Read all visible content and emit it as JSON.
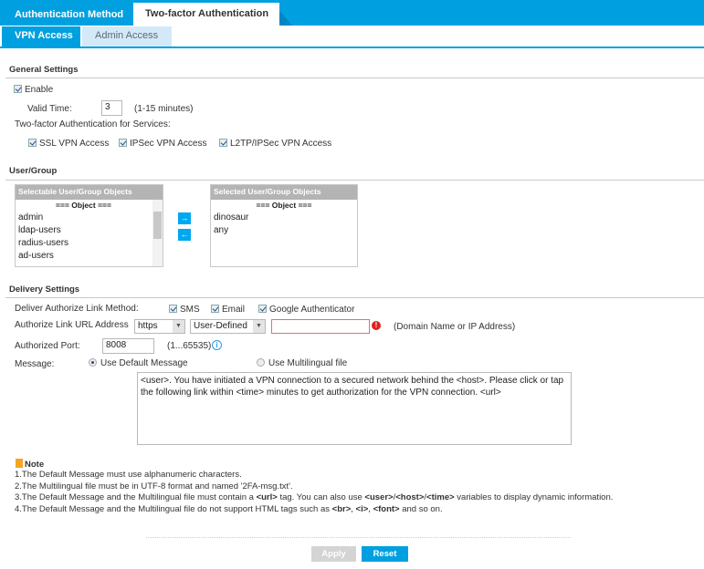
{
  "tabs": {
    "main": [
      "Authentication Method",
      "Two-factor Authentication"
    ],
    "sub": [
      "VPN Access",
      "Admin Access"
    ]
  },
  "general": {
    "title": "General Settings",
    "enable_label": "Enable",
    "enable_checked": true,
    "valid_time_label": "Valid Time:",
    "valid_time_value": "3",
    "valid_time_hint": "(1-15 minutes)",
    "services_label": "Two-factor Authentication for Services:",
    "services": [
      {
        "label": "SSL VPN Access",
        "checked": true
      },
      {
        "label": "IPSec VPN Access",
        "checked": true
      },
      {
        "label": "L2TP/IPSec VPN Access",
        "checked": true
      }
    ]
  },
  "usergroup": {
    "title": "User/Group",
    "selectable": {
      "header": "Selectable User/Group Objects",
      "object_label": "=== Object ===",
      "items": [
        "admin",
        "ldap-users",
        "radius-users",
        "ad-users"
      ]
    },
    "selected": {
      "header": "Selected User/Group Objects",
      "object_label": "=== Object ===",
      "items": [
        "dinosaur",
        "any"
      ]
    },
    "add_icon": "arrow-right-icon",
    "remove_icon": "arrow-left-icon"
  },
  "delivery": {
    "title": "Delivery Settings",
    "method_label": "Deliver Authorize Link Method:",
    "methods": [
      {
        "label": "SMS",
        "checked": true
      },
      {
        "label": "Email",
        "checked": true
      },
      {
        "label": "Google Authenticator",
        "checked": true
      }
    ],
    "url_label": "Authorize Link URL Address",
    "protocol": "https",
    "url_type": "User-Defined",
    "url_value": "",
    "url_hint": "(Domain Name or IP Address)",
    "port_label": "Authorized Port:",
    "port_value": "8008",
    "port_hint": "(1...65535)",
    "message_label": "Message:",
    "message_options": [
      {
        "label": "Use Default Message",
        "selected": true
      },
      {
        "label": "Use Multilingual file",
        "selected": false
      }
    ],
    "message_text": "<user>. You have initiated a VPN connection to a secured network behind the <host>. Please click or tap the following link within <time> minutes to get authorization for the VPN connection. <url>"
  },
  "note": {
    "title": "Note",
    "line1": "1.The Default Message must use alphanumeric characters.",
    "line2": "2.The Multilingual file must be in UTF-8 format and named '2FA-msg.txt'.",
    "line3": {
      "a": "3.The Default Message and the Multilingual file must contain a ",
      "b": "<url>",
      "c": " tag. You can also use ",
      "d": "<user>",
      "e": "/",
      "f": "<host>",
      "g": "/",
      "h": "<time>",
      "i": " variables to display dynamic information."
    },
    "line4": {
      "a": "4.The Default Message and the Multilingual file do not support HTML tags such as ",
      "b": "<br>",
      "c": ", ",
      "d": "<i>",
      "e": ", ",
      "f": "<font>",
      "g": " and so on."
    }
  },
  "buttons": {
    "apply": "Apply",
    "reset": "Reset"
  },
  "colors": {
    "accent": "#00a0e0",
    "error": "#e02020"
  }
}
